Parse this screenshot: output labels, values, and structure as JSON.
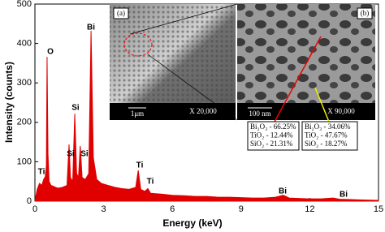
{
  "chart_data": {
    "type": "area",
    "x_label": "Energy (keV)",
    "y_label": "Intensity (counts)",
    "xlim": [
      0,
      15
    ],
    "xticks": [
      0,
      3,
      6,
      9,
      12,
      15
    ],
    "ylim": [
      0,
      500
    ],
    "yticks": [
      0,
      100,
      200,
      300,
      400,
      500
    ],
    "x": [
      0,
      0.1,
      0.2,
      0.3,
      0.38,
      0.45,
      0.5,
      0.53,
      0.57,
      0.62,
      0.7,
      0.8,
      0.9,
      1.0,
      1.2,
      1.4,
      1.49,
      1.55,
      1.65,
      1.74,
      1.82,
      1.9,
      1.98,
      2.06,
      2.2,
      2.35,
      2.45,
      2.55,
      2.7,
      2.9,
      3.2,
      3.5,
      3.8,
      4.1,
      4.4,
      4.51,
      4.62,
      4.8,
      4.93,
      5.05,
      5.5,
      6,
      6.5,
      7,
      7.5,
      8,
      8.5,
      9,
      9.5,
      10,
      10.5,
      10.84,
      11.1,
      11.5,
      12,
      12.5,
      13.02,
      13.3,
      13.8,
      14.3,
      15
    ],
    "series": [
      {
        "color": "#e00000",
        "values": [
          0,
          30,
          45,
          40,
          55,
          62,
          90,
          366,
          120,
          50,
          40,
          38,
          35,
          33,
          35,
          40,
          144,
          60,
          50,
          222,
          70,
          60,
          140,
          60,
          55,
          70,
          432,
          110,
          55,
          45,
          40,
          35,
          32,
          30,
          35,
          78,
          30,
          25,
          32,
          20,
          18,
          15,
          14,
          12,
          12,
          10,
          10,
          9,
          8,
          8,
          10,
          15,
          8,
          7,
          6,
          6,
          8,
          5,
          4,
          3,
          2
        ]
      }
    ],
    "annotations": [
      "Ti",
      "O",
      "Si",
      "Si",
      "Si",
      "Bi",
      "Ti",
      "Ti",
      "Bi",
      "Bi"
    ],
    "insets": [
      {
        "label": "(a)",
        "scale_bar": "1μm",
        "magnification": "X 20,000"
      },
      {
        "label": "(b)",
        "scale_bar": "100 nm",
        "magnification": "X 90,000"
      }
    ],
    "compositions": [
      [
        "Bi₂O₃ - 66.25%",
        "TiO₂ - 12.44%",
        "SiO₂ - 21.31%"
      ],
      [
        "Bi₂O₃ - 34.06%",
        "TiO₂ - 47.67%",
        "SiO₂ - 18.27%"
      ]
    ]
  }
}
